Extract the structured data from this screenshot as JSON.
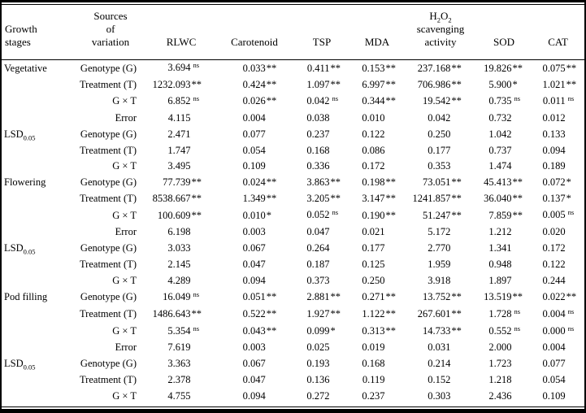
{
  "colors": {
    "background": "#ffffff",
    "rule": "#000000",
    "text": "#000000"
  },
  "header": {
    "growth_stages": [
      "Growth",
      "stages"
    ],
    "sources": [
      "Sources",
      "of",
      "variation"
    ],
    "rlwc": "RLWC",
    "carotenoid": "Carotenoid",
    "tsp": "TSP",
    "mda": "MDA",
    "h2o2": {
      "h": "H",
      "sub1": "2",
      "o": "O",
      "sub2": "2",
      "line2": "scavenging",
      "line3": "activity"
    },
    "sod": "SOD",
    "cat": "CAT"
  },
  "lsd_label": {
    "base": "LSD",
    "sub": "0.05"
  },
  "column_ids": [
    "rlwc",
    "carotenoid",
    "tsp",
    "mda",
    "h2o2-scavenging",
    "sod",
    "cat"
  ],
  "rows": [
    {
      "stage": "Vegetative",
      "source": "Genotype (G)",
      "cells": [
        [
          "3.694",
          "ns"
        ],
        [
          "0.033",
          "**"
        ],
        [
          "0.411",
          "**"
        ],
        [
          "0.153",
          "**"
        ],
        [
          "237.168",
          "**"
        ],
        [
          "19.826",
          "**"
        ],
        [
          "0.075",
          "**"
        ]
      ]
    },
    {
      "stage": "",
      "source": "Treatment (T)",
      "cells": [
        [
          "1232.093",
          "**"
        ],
        [
          "0.424",
          "**"
        ],
        [
          "1.097",
          "**"
        ],
        [
          "6.997",
          "**"
        ],
        [
          "706.986",
          "**"
        ],
        [
          "5.900",
          "*"
        ],
        [
          "1.021",
          "**"
        ]
      ]
    },
    {
      "stage": "",
      "source": "G × T",
      "cells": [
        [
          "6.852",
          "ns"
        ],
        [
          "0.026",
          "**"
        ],
        [
          "0.042",
          "ns"
        ],
        [
          "0.344",
          "**"
        ],
        [
          "19.542",
          "**"
        ],
        [
          "0.735",
          "ns"
        ],
        [
          "0.011",
          "ns"
        ]
      ]
    },
    {
      "stage": "",
      "source": "Error",
      "cells": [
        [
          "4.115",
          ""
        ],
        [
          "0.004",
          ""
        ],
        [
          "0.038",
          ""
        ],
        [
          "0.010",
          ""
        ],
        [
          "0.042",
          ""
        ],
        [
          "0.732",
          ""
        ],
        [
          "0.012",
          ""
        ]
      ]
    },
    {
      "stage": "LSD",
      "source": "Genotype (G)",
      "cells": [
        [
          "2.471",
          ""
        ],
        [
          "0.077",
          ""
        ],
        [
          "0.237",
          ""
        ],
        [
          "0.122",
          ""
        ],
        [
          "0.250",
          ""
        ],
        [
          "1.042",
          ""
        ],
        [
          "0.133",
          ""
        ]
      ]
    },
    {
      "stage": "",
      "source": "Treatment (T)",
      "cells": [
        [
          "1.747",
          ""
        ],
        [
          "0.054",
          ""
        ],
        [
          "0.168",
          ""
        ],
        [
          "0.086",
          ""
        ],
        [
          "0.177",
          ""
        ],
        [
          "0.737",
          ""
        ],
        [
          "0.094",
          ""
        ]
      ]
    },
    {
      "stage": "",
      "source": "G × T",
      "cells": [
        [
          "3.495",
          ""
        ],
        [
          "0.109",
          ""
        ],
        [
          "0.336",
          ""
        ],
        [
          "0.172",
          ""
        ],
        [
          "0.353",
          ""
        ],
        [
          "1.474",
          ""
        ],
        [
          "0.189",
          ""
        ]
      ]
    },
    {
      "stage": "Flowering",
      "source": "Genotype (G)",
      "cells": [
        [
          "77.739",
          "**"
        ],
        [
          "0.024",
          "**"
        ],
        [
          "3.863",
          "**"
        ],
        [
          "0.198",
          "**"
        ],
        [
          "73.051",
          "**"
        ],
        [
          "45.413",
          "**"
        ],
        [
          "0.072",
          "*"
        ]
      ]
    },
    {
      "stage": "",
      "source": "Treatment (T)",
      "cells": [
        [
          "8538.667",
          "**"
        ],
        [
          "1.349",
          "**"
        ],
        [
          "3.205",
          "**"
        ],
        [
          "3.147",
          "**"
        ],
        [
          "1241.857",
          "**"
        ],
        [
          "36.040",
          "**"
        ],
        [
          "0.137",
          "*"
        ]
      ]
    },
    {
      "stage": "",
      "source": "G × T",
      "cells": [
        [
          "100.609",
          "**"
        ],
        [
          "0.010",
          "*"
        ],
        [
          "0.052",
          "ns"
        ],
        [
          "0.190",
          "**"
        ],
        [
          "51.247",
          "**"
        ],
        [
          "7.859",
          "**"
        ],
        [
          "0.005",
          "ns"
        ]
      ]
    },
    {
      "stage": "",
      "source": "Error",
      "cells": [
        [
          "6.198",
          ""
        ],
        [
          "0.003",
          ""
        ],
        [
          "0.047",
          ""
        ],
        [
          "0.021",
          ""
        ],
        [
          "5.172",
          ""
        ],
        [
          "1.212",
          ""
        ],
        [
          "0.020",
          ""
        ]
      ]
    },
    {
      "stage": "LSD",
      "source": "Genotype (G)",
      "cells": [
        [
          "3.033",
          ""
        ],
        [
          "0.067",
          ""
        ],
        [
          "0.264",
          ""
        ],
        [
          "0.177",
          ""
        ],
        [
          "2.770",
          ""
        ],
        [
          "1.341",
          ""
        ],
        [
          "0.172",
          ""
        ]
      ]
    },
    {
      "stage": "",
      "source": "Treatment (T)",
      "cells": [
        [
          "2.145",
          ""
        ],
        [
          "0.047",
          ""
        ],
        [
          "0.187",
          ""
        ],
        [
          "0.125",
          ""
        ],
        [
          "1.959",
          ""
        ],
        [
          "0.948",
          ""
        ],
        [
          "0.122",
          ""
        ]
      ]
    },
    {
      "stage": "",
      "source": "G × T",
      "cells": [
        [
          "4.289",
          ""
        ],
        [
          "0.094",
          ""
        ],
        [
          "0.373",
          ""
        ],
        [
          "0.250",
          ""
        ],
        [
          "3.918",
          ""
        ],
        [
          "1.897",
          ""
        ],
        [
          "0.244",
          ""
        ]
      ]
    },
    {
      "stage": "Pod filling",
      "source": "Genotype (G)",
      "cells": [
        [
          "16.049",
          "ns"
        ],
        [
          "0.051",
          "**"
        ],
        [
          "2.881",
          "**"
        ],
        [
          "0.271",
          "**"
        ],
        [
          "13.752",
          "**"
        ],
        [
          "13.519",
          "**"
        ],
        [
          "0.022",
          "**"
        ]
      ]
    },
    {
      "stage": "",
      "source": "Treatment (T)",
      "cells": [
        [
          "1486.643",
          "**"
        ],
        [
          "0.522",
          "**"
        ],
        [
          "1.927",
          "**"
        ],
        [
          "1.122",
          "**"
        ],
        [
          "267.601",
          "**"
        ],
        [
          "1.728",
          "ns"
        ],
        [
          "0.004",
          "ns"
        ]
      ]
    },
    {
      "stage": "",
      "source": "G × T",
      "cells": [
        [
          "5.354",
          "ns"
        ],
        [
          "0.043",
          "**"
        ],
        [
          "0.099",
          "*"
        ],
        [
          "0.313",
          "**"
        ],
        [
          "14.733",
          "**"
        ],
        [
          "0.552",
          "ns"
        ],
        [
          "0.000",
          "ns"
        ]
      ]
    },
    {
      "stage": "",
      "source": "Error",
      "cells": [
        [
          "7.619",
          ""
        ],
        [
          "0.003",
          ""
        ],
        [
          "0.025",
          ""
        ],
        [
          "0.019",
          ""
        ],
        [
          "0.031",
          ""
        ],
        [
          "2.000",
          ""
        ],
        [
          "0.004",
          ""
        ]
      ]
    },
    {
      "stage": "LSD",
      "source": "Genotype (G)",
      "cells": [
        [
          "3.363",
          ""
        ],
        [
          "0.067",
          ""
        ],
        [
          "0.193",
          ""
        ],
        [
          "0.168",
          ""
        ],
        [
          "0.214",
          ""
        ],
        [
          "1.723",
          ""
        ],
        [
          "0.077",
          ""
        ]
      ]
    },
    {
      "stage": "",
      "source": "Treatment (T)",
      "cells": [
        [
          "2.378",
          ""
        ],
        [
          "0.047",
          ""
        ],
        [
          "0.136",
          ""
        ],
        [
          "0.119",
          ""
        ],
        [
          "0.152",
          ""
        ],
        [
          "1.218",
          ""
        ],
        [
          "0.054",
          ""
        ]
      ]
    },
    {
      "stage": "",
      "source": "G × T",
      "cells": [
        [
          "4.755",
          ""
        ],
        [
          "0.094",
          ""
        ],
        [
          "0.272",
          ""
        ],
        [
          "0.237",
          ""
        ],
        [
          "0.303",
          ""
        ],
        [
          "2.436",
          ""
        ],
        [
          "0.109",
          ""
        ]
      ]
    }
  ]
}
